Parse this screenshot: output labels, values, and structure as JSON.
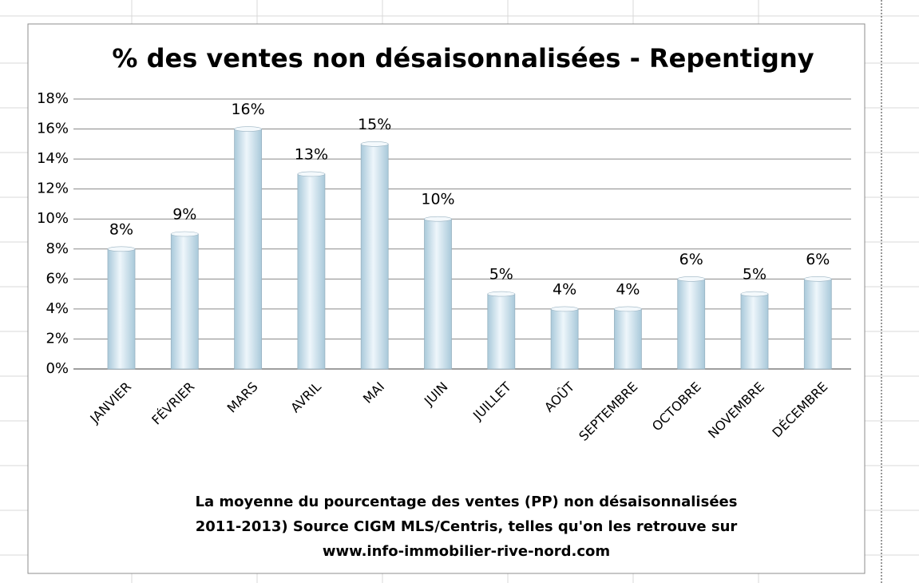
{
  "chart_data": {
    "type": "bar",
    "title": "% des ventes non désaisonnalisées - Repentigny",
    "categories": [
      "JANVIER",
      "FÉVRIER",
      "MARS",
      "AVRIL",
      "MAI",
      "JUIN",
      "JUILLET",
      "AOÛT",
      "SEPTEMBRE",
      "OCTOBRE",
      "NOVEMBRE",
      "DÉCEMBRE"
    ],
    "values": [
      8,
      9,
      16,
      13,
      15,
      10,
      5,
      4,
      4,
      6,
      5,
      6
    ],
    "value_labels": [
      "8%",
      "9%",
      "16%",
      "13%",
      "15%",
      "10%",
      "5%",
      "4%",
      "4%",
      "6%",
      "5%",
      "6%"
    ],
    "color": "#a9c9da",
    "ylim": [
      0,
      18
    ],
    "yticks": [
      {
        "value": 0,
        "label": "0%"
      },
      {
        "value": 2,
        "label": "2%"
      },
      {
        "value": 4,
        "label": "4%"
      },
      {
        "value": 6,
        "label": "6%"
      },
      {
        "value": 8,
        "label": "8%"
      },
      {
        "value": 10,
        "label": "10%"
      },
      {
        "value": 12,
        "label": "12%"
      },
      {
        "value": 14,
        "label": "14%"
      },
      {
        "value": 16,
        "label": "16%"
      },
      {
        "value": 18,
        "label": "18%"
      }
    ],
    "grid": true,
    "caption": [
      "La moyenne du pourcentage des ventes (PP) non désaisonnalisées",
      "2011-2013) Source CIGM MLS/Centris, telles qu'on les retrouve sur",
      "www.info-immobilier-rive-nord.com"
    ]
  }
}
